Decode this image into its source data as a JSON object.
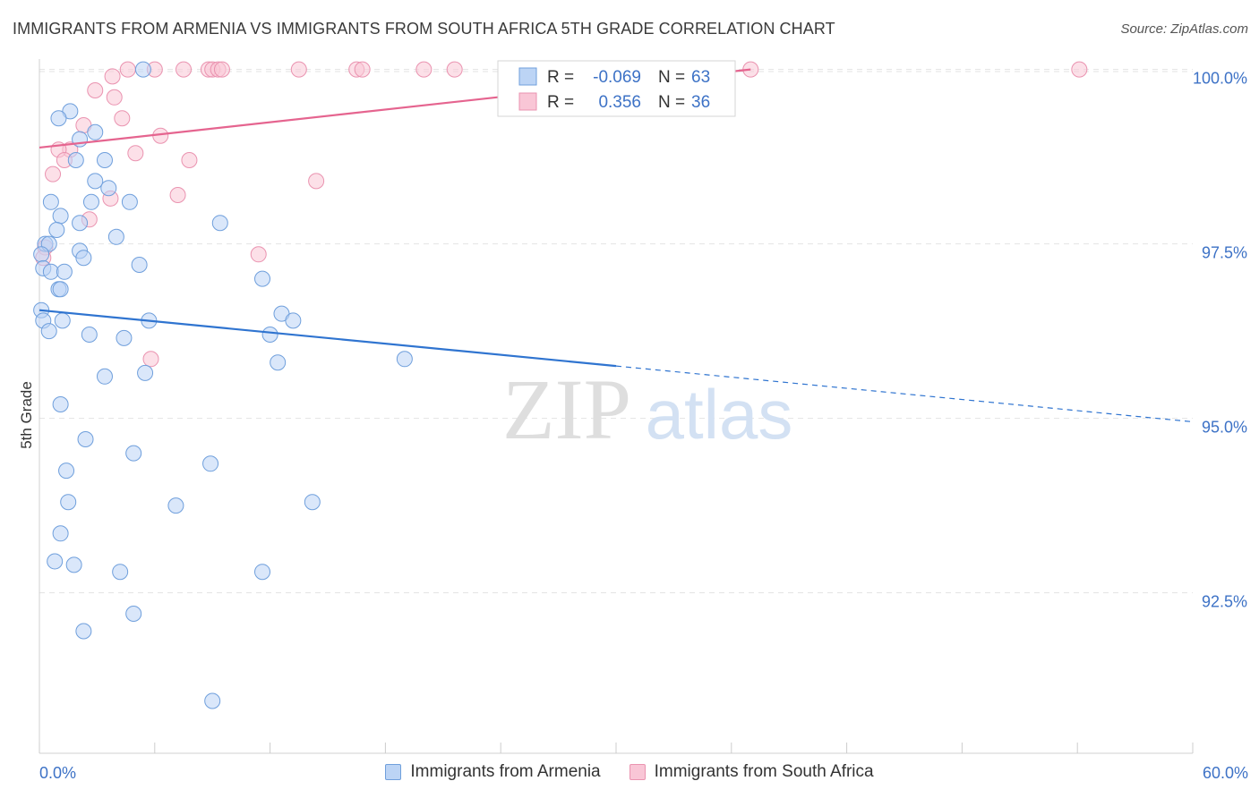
{
  "header": {
    "title": "IMMIGRANTS FROM ARMENIA VS IMMIGRANTS FROM SOUTH AFRICA 5TH GRADE CORRELATION CHART",
    "source": "Source: ZipAtlas.com"
  },
  "watermark": {
    "left": "ZIP",
    "right": "atlas"
  },
  "colors": {
    "armenia_fill": "#bcd4f5",
    "armenia_stroke": "#6f9fdc",
    "armenia_line": "#2f74d0",
    "southafrica_fill": "#f9c6d6",
    "southafrica_stroke": "#ea93b0",
    "southafrica_line": "#e5648f",
    "axis_label": "#3d72c6",
    "grid": "#e3e3e3"
  },
  "stats_legend": {
    "rows": [
      {
        "r_label": "R =",
        "r_value": "-0.069",
        "n_label": "N =",
        "n_value": "63"
      },
      {
        "r_label": "R =",
        "r_value": "0.356",
        "n_label": "N =",
        "n_value": "36"
      }
    ]
  },
  "chart_data": {
    "type": "scatter",
    "title": "IMMIGRANTS FROM ARMENIA VS IMMIGRANTS FROM SOUTH AFRICA 5TH GRADE CORRELATION CHART",
    "xlabel": "",
    "ylabel": "5th Grade",
    "xlim": [
      0,
      60
    ],
    "ylim": [
      90.2,
      100.2
    ],
    "x_tick_labels": [
      "0.0%",
      "60.0%"
    ],
    "y_ticks": [
      92.5,
      95.0,
      97.5,
      100.0
    ],
    "y_tick_labels": [
      "92.5%",
      "95.0%",
      "97.5%",
      "100.0%"
    ],
    "grid": true,
    "legend": [
      "Immigrants from Armenia",
      "Immigrants from South Africa"
    ],
    "series": [
      {
        "name": "Immigrants from Armenia",
        "r": -0.069,
        "n": 63,
        "trend": {
          "x0": 0,
          "y0": 96.55,
          "x1": 30,
          "y1": 95.75,
          "x_dash_end": 60,
          "y_dash_end": 94.95
        },
        "points": [
          [
            5.4,
            100.0
          ],
          [
            1.6,
            99.4
          ],
          [
            1.0,
            99.3
          ],
          [
            2.9,
            99.1
          ],
          [
            2.1,
            99.0
          ],
          [
            1.9,
            98.7
          ],
          [
            3.4,
            98.7
          ],
          [
            2.9,
            98.4
          ],
          [
            3.6,
            98.3
          ],
          [
            0.6,
            98.1
          ],
          [
            2.7,
            98.1
          ],
          [
            4.7,
            98.1
          ],
          [
            1.1,
            97.9
          ],
          [
            2.1,
            97.8
          ],
          [
            9.4,
            97.8
          ],
          [
            0.9,
            97.7
          ],
          [
            4.0,
            97.6
          ],
          [
            0.3,
            97.5
          ],
          [
            0.5,
            97.5
          ],
          [
            2.1,
            97.4
          ],
          [
            0.1,
            97.35
          ],
          [
            2.3,
            97.3
          ],
          [
            5.2,
            97.2
          ],
          [
            0.2,
            97.15
          ],
          [
            0.6,
            97.1
          ],
          [
            1.3,
            97.1
          ],
          [
            11.6,
            97.0
          ],
          [
            1.0,
            96.85
          ],
          [
            1.1,
            96.85
          ],
          [
            0.1,
            96.55
          ],
          [
            12.6,
            96.5
          ],
          [
            0.2,
            96.4
          ],
          [
            1.2,
            96.4
          ],
          [
            5.7,
            96.4
          ],
          [
            13.2,
            96.4
          ],
          [
            0.5,
            96.25
          ],
          [
            2.6,
            96.2
          ],
          [
            4.4,
            96.15
          ],
          [
            12.0,
            96.2
          ],
          [
            19.0,
            95.85
          ],
          [
            12.4,
            95.8
          ],
          [
            3.4,
            95.6
          ],
          [
            5.5,
            95.65
          ],
          [
            1.1,
            95.2
          ],
          [
            2.4,
            94.7
          ],
          [
            4.9,
            94.5
          ],
          [
            8.9,
            94.35
          ],
          [
            1.4,
            94.25
          ],
          [
            1.5,
            93.8
          ],
          [
            7.1,
            93.75
          ],
          [
            14.2,
            93.8
          ],
          [
            1.1,
            93.35
          ],
          [
            0.8,
            92.95
          ],
          [
            1.8,
            92.9
          ],
          [
            4.2,
            92.8
          ],
          [
            11.6,
            92.8
          ],
          [
            4.9,
            92.2
          ],
          [
            2.3,
            91.95
          ],
          [
            9.0,
            90.95
          ]
        ]
      },
      {
        "name": "Immigrants from South Africa",
        "r": 0.356,
        "n": 36,
        "trend": {
          "x0": 0,
          "y0": 98.88,
          "x1": 37,
          "y1": 100.0
        },
        "points": [
          [
            4.6,
            100.0
          ],
          [
            6.0,
            100.0
          ],
          [
            7.5,
            100.0
          ],
          [
            8.8,
            100.0
          ],
          [
            9.0,
            100.0
          ],
          [
            9.3,
            100.0
          ],
          [
            9.5,
            100.0
          ],
          [
            13.5,
            100.0
          ],
          [
            16.5,
            100.0
          ],
          [
            16.8,
            100.0
          ],
          [
            20.0,
            100.0
          ],
          [
            21.6,
            100.0
          ],
          [
            37.0,
            100.0
          ],
          [
            54.1,
            100.0
          ],
          [
            3.8,
            99.9
          ],
          [
            2.9,
            99.7
          ],
          [
            3.9,
            99.6
          ],
          [
            4.3,
            99.3
          ],
          [
            2.3,
            99.2
          ],
          [
            6.3,
            99.05
          ],
          [
            1.6,
            98.85
          ],
          [
            1.0,
            98.85
          ],
          [
            5.0,
            98.8
          ],
          [
            7.8,
            98.7
          ],
          [
            1.3,
            98.7
          ],
          [
            0.7,
            98.5
          ],
          [
            14.4,
            98.4
          ],
          [
            7.2,
            98.2
          ],
          [
            3.7,
            98.15
          ],
          [
            2.6,
            97.85
          ],
          [
            0.3,
            97.45
          ],
          [
            11.4,
            97.35
          ],
          [
            0.2,
            97.3
          ],
          [
            5.8,
            95.85
          ]
        ]
      }
    ]
  },
  "bottom_legend": {
    "armenia_label": "Immigrants from Armenia",
    "southafrica_label": "Immigrants from South Africa"
  }
}
